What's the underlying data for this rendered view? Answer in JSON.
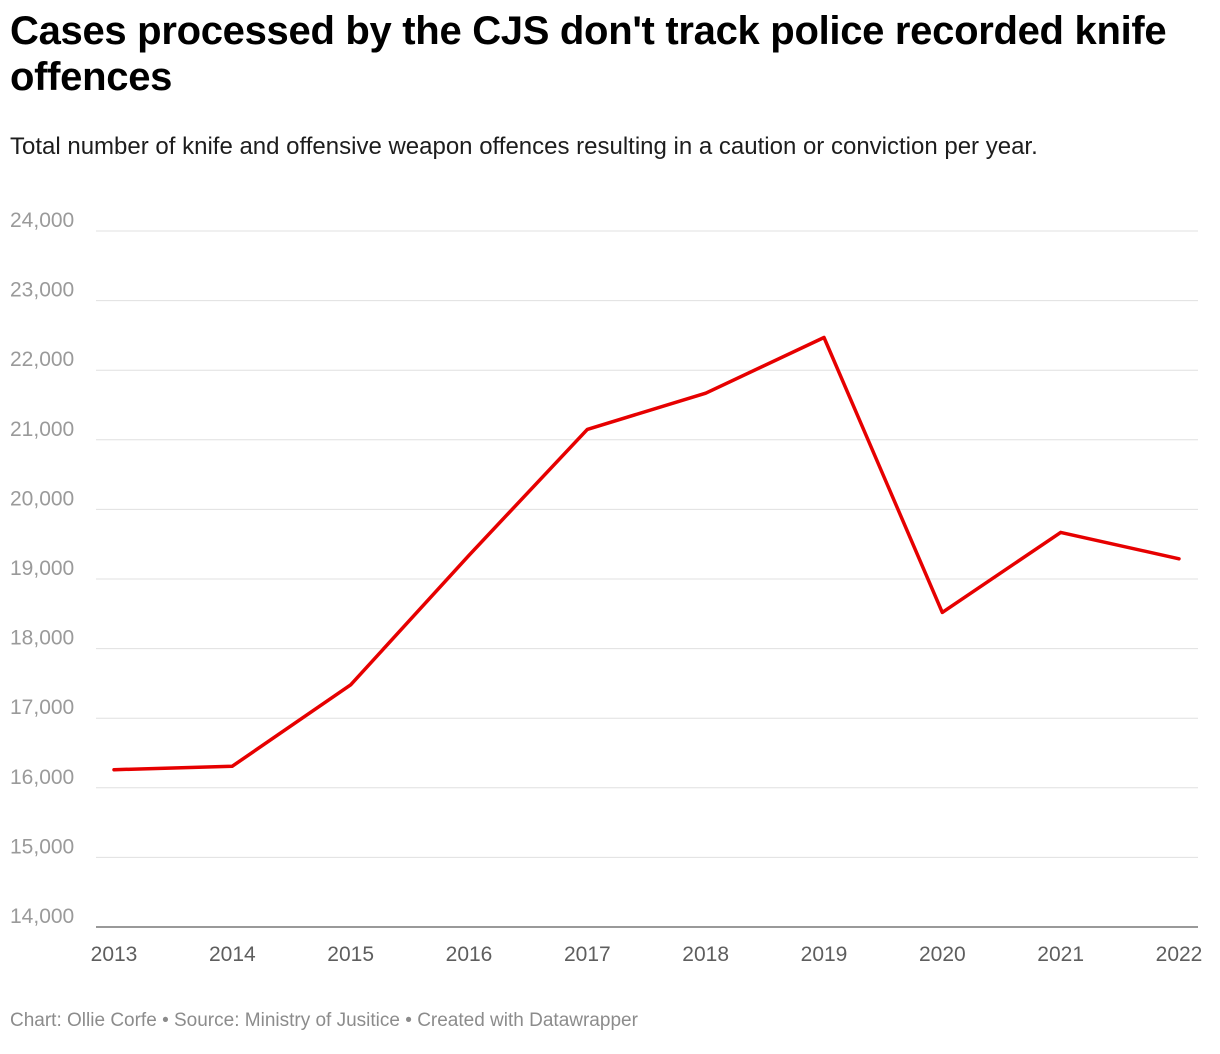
{
  "title": "Cases processed by the CJS don't track police recorded knife offences",
  "subtitle": "Total number of knife and offensive weapon offences resulting in a caution or conviction per year.",
  "footer": {
    "chart_label": "Chart:",
    "author": "Ollie Corfe",
    "source_label": "Source:",
    "source": "Ministry of Jusitice",
    "created_with": "Created with Datawrapper",
    "separator": "•"
  },
  "colors": {
    "line": "#e60000",
    "grid": "#e0e0e0",
    "axis_text": "#9a9a9a",
    "x_text": "#5e5e5e"
  },
  "chart_data": {
    "type": "line",
    "title": "Cases processed by the CJS don't track police recorded knife offences",
    "subtitle": "Total number of knife and offensive weapon offences resulting in a caution or conviction per year.",
    "xlabel": "",
    "ylabel": "",
    "x": [
      "2013",
      "2014",
      "2015",
      "2016",
      "2017",
      "2018",
      "2019",
      "2020",
      "2021",
      "2022"
    ],
    "series": [
      {
        "values": [
          16260,
          16310,
          17480,
          19340,
          21150,
          21670,
          22470,
          18520,
          19670,
          19290
        ]
      }
    ],
    "ylim": [
      14000,
      24000
    ],
    "yticks": [
      14000,
      15000,
      16000,
      17000,
      18000,
      19000,
      20000,
      21000,
      22000,
      23000,
      24000
    ],
    "ytick_labels": [
      "14,000",
      "15,000",
      "16,000",
      "17,000",
      "18,000",
      "19,000",
      "20,000",
      "21,000",
      "22,000",
      "23,000",
      "24,000"
    ],
    "grid": true,
    "legend": "none"
  }
}
